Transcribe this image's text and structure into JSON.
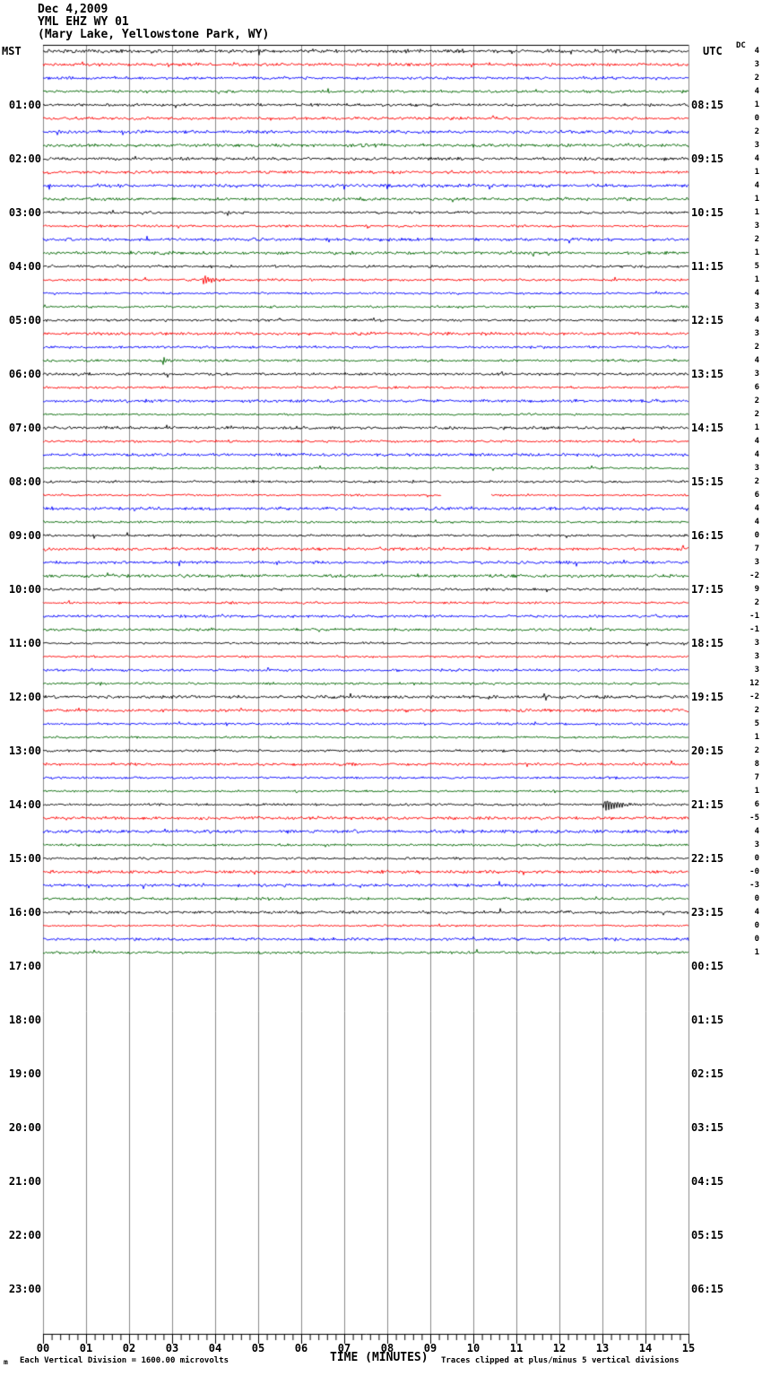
{
  "header": {
    "date": "Dec 4,2009",
    "station": "YML EHZ WY 01",
    "location": "(Mary Lake, Yellowstone Park, WY)"
  },
  "axes": {
    "left_tz": "MST",
    "right_tz": "UTC",
    "dc_label": "DC",
    "x_title": "TIME (MINUTES)",
    "x_ticks": [
      "00",
      "01",
      "02",
      "03",
      "04",
      "05",
      "06",
      "07",
      "08",
      "09",
      "10",
      "11",
      "12",
      "13",
      "14",
      "15"
    ]
  },
  "left_time_labels": [
    "01:00",
    "02:00",
    "03:00",
    "04:00",
    "05:00",
    "06:00",
    "07:00",
    "08:00",
    "09:00",
    "10:00",
    "11:00",
    "12:00",
    "13:00",
    "14:00",
    "15:00",
    "16:00",
    "17:00",
    "18:00",
    "19:00",
    "20:00",
    "21:00",
    "22:00",
    "23:00"
  ],
  "right_time_labels": [
    "08:15",
    "09:15",
    "10:15",
    "11:15",
    "12:15",
    "13:15",
    "14:15",
    "15:15",
    "16:15",
    "17:15",
    "18:15",
    "19:15",
    "20:15",
    "21:15",
    "22:15",
    "23:15",
    "00:15",
    "01:15",
    "02:15",
    "03:15",
    "04:15",
    "05:15",
    "06:15"
  ],
  "footer": {
    "left": "Each Vertical Division = 1600.00 microvolts",
    "right": "Traces clipped at plus/minus 5 vertical divisions",
    "corner_mark": "m"
  },
  "chart_data": {
    "type": "line",
    "subtype": "helicorder-seismogram",
    "title": "YML EHZ WY 01 (Mary Lake, Yellowstone Park, WY) Dec 4,2009",
    "minutes_per_line": 15,
    "lines_per_hour": 4,
    "num_lines_with_data": 68,
    "first_line_start_mst": "00:00",
    "last_line_end_mst": "17:00",
    "utc_offset_from_mst_hours": 7,
    "xlabel": "TIME (MINUTES)",
    "x_range_minutes": [
      0,
      15
    ],
    "trace_color_cycle": [
      "#000000",
      "#ff0000",
      "#0000ff",
      "#006600"
    ],
    "grid_color": "#8a8a8a",
    "grid": "vertical lines each minute",
    "dc_offsets": [
      "4",
      "3",
      "2",
      "4",
      "1",
      "0",
      "2",
      "3",
      "4",
      "1",
      "4",
      "1",
      "1",
      "3",
      "2",
      "1",
      "5",
      "1",
      "4",
      "3",
      "4",
      "3",
      "2",
      "4",
      "3",
      "6",
      "2",
      "2",
      "1",
      "4",
      "4",
      "3",
      "2",
      "6",
      "4",
      "4",
      "0",
      "7",
      "3",
      "-2",
      "9",
      "2",
      "-1",
      "-1",
      "3",
      "3",
      "3",
      "12",
      "-2",
      "2",
      "5",
      "1",
      "2",
      "8",
      "7",
      "1",
      "6",
      "-5",
      "4",
      "3",
      "0",
      "-0",
      "-3",
      "0",
      "4",
      "0",
      "0",
      "1"
    ],
    "events": [
      {
        "line_index": 17,
        "line_start_mst": "04:15",
        "approx_minute": 3.7,
        "approx_time_mst": "04:18:42",
        "color": "#ff0000",
        "amplitude_divisions": 0.5,
        "duration_seconds": 30
      },
      {
        "line_index": 23,
        "line_start_mst": "05:45",
        "approx_minute": 2.75,
        "approx_time_mst": "05:47:45",
        "color": "#006600",
        "amplitude_divisions": 0.45,
        "duration_seconds": 25
      },
      {
        "line_index": 55,
        "line_start_mst": "13:45",
        "approx_minute": 10.5,
        "approx_time_mst": "13:55:30",
        "color": "#006600",
        "amplitude_divisions": 0.18,
        "duration_seconds": 10
      },
      {
        "line_index": 56,
        "line_start_mst": "14:00",
        "approx_minute": 13.0,
        "approx_time_mst": "14:13:00",
        "color": "#000000",
        "amplitude_divisions": 0.55,
        "duration_seconds": 70
      }
    ],
    "data_gaps": [
      {
        "line_index": 33,
        "line_start_mst": "08:15",
        "start_minute": 9.25,
        "end_minute": 10.4
      }
    ]
  }
}
